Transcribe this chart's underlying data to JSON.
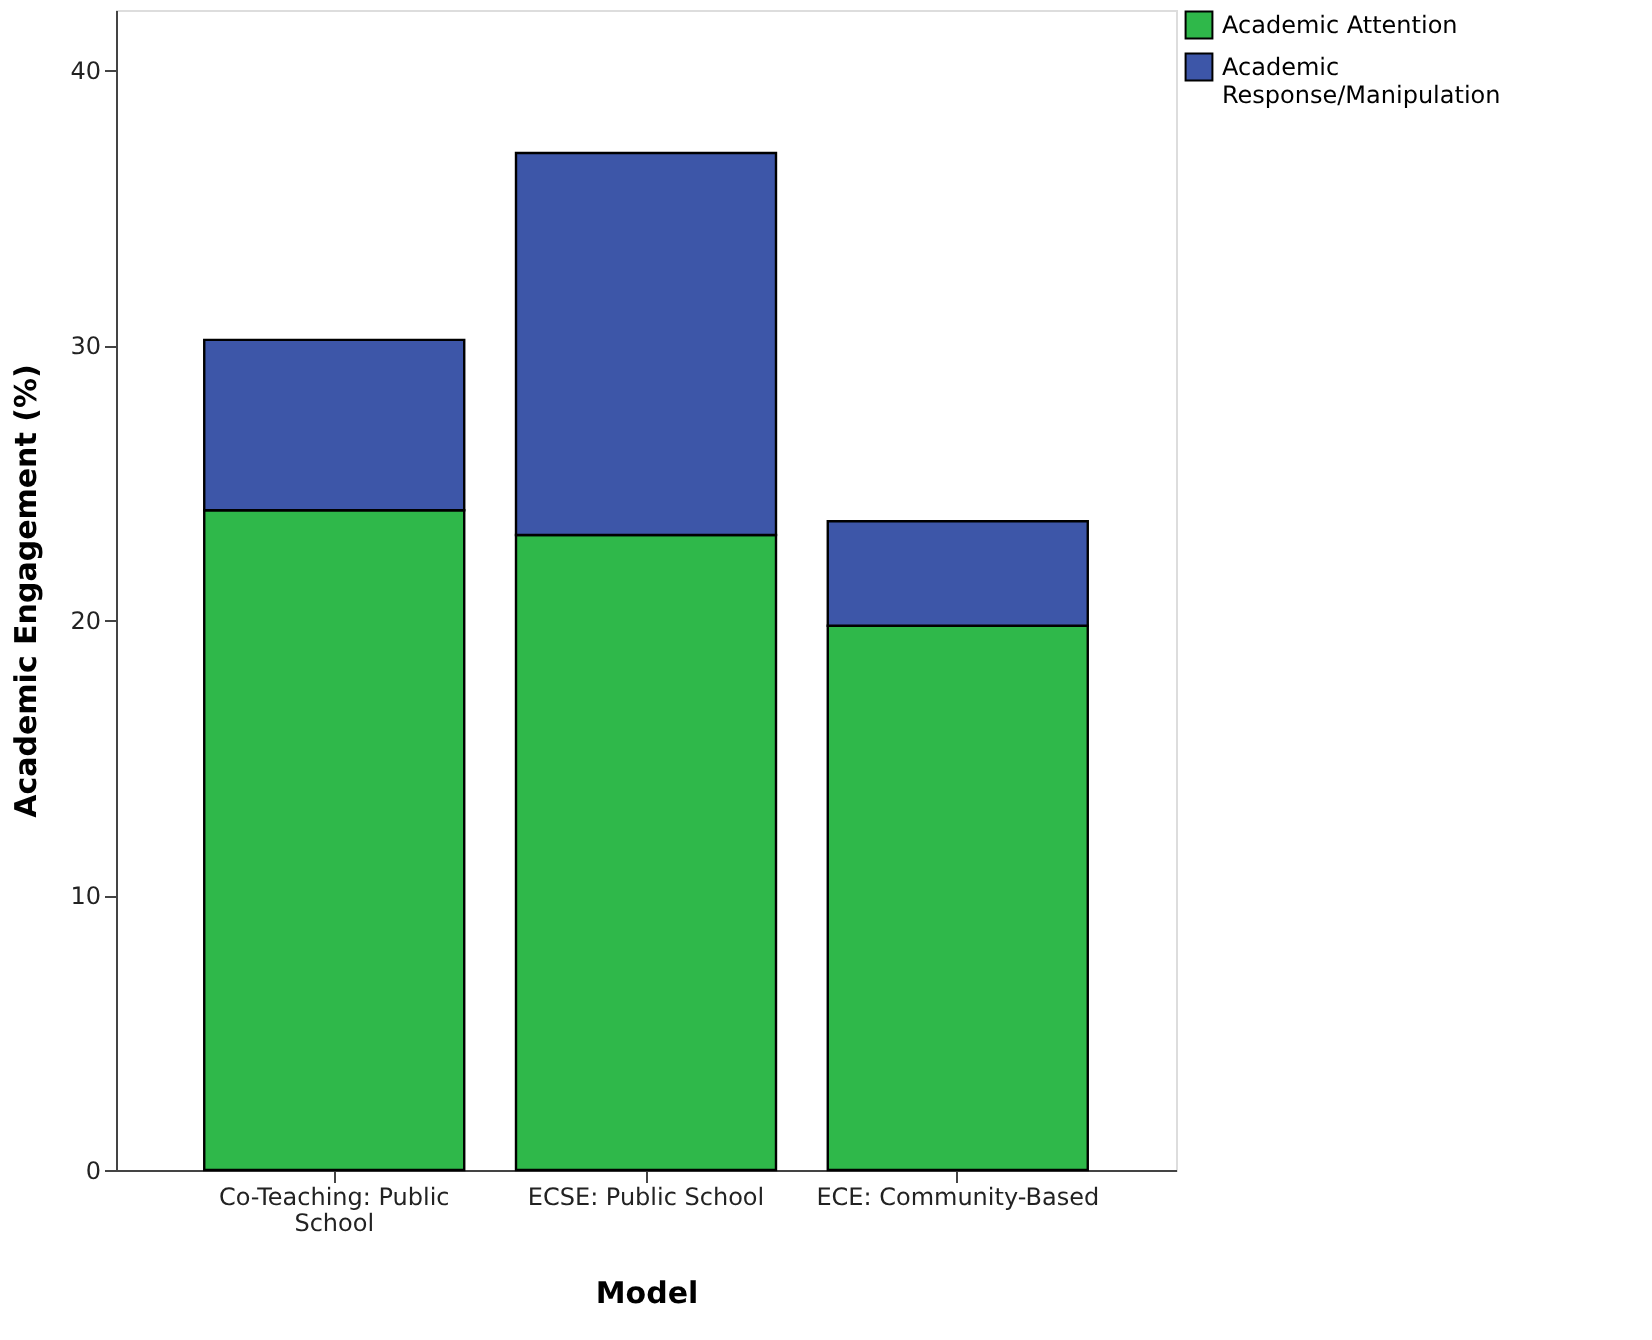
{
  "chart_data": {
    "type": "bar",
    "xlabel": "Model",
    "ylabel": "Academic Engagement (%)",
    "categories": [
      "Co-Teaching: Public School",
      "ECSE: Public School",
      "ECE: Community-Based"
    ],
    "stacked": true,
    "series": [
      {
        "name": "Academic Attention",
        "color": "#2fb84a",
        "values": [
          24.0,
          23.1,
          19.8
        ]
      },
      {
        "name": "Academic Response/Manipulation",
        "color": "#3d56a8",
        "values": [
          6.2,
          13.9,
          3.8
        ]
      }
    ],
    "ylim": [
      0,
      42.2
    ],
    "yticks": [
      0,
      10,
      20,
      30,
      40
    ],
    "grid": false,
    "legend": "top right"
  }
}
